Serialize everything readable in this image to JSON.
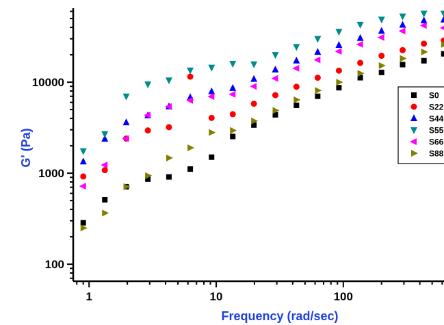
{
  "chart_data": {
    "type": "scatter",
    "title": "",
    "xlabel": "Frequency (rad/sec)",
    "ylabel": "G' (Pa)",
    "xscale": "log",
    "yscale": "log",
    "xlim": [
      0.75,
      620
    ],
    "ylim": [
      65,
      65000
    ],
    "x_ticks": [
      1,
      10,
      100
    ],
    "x_tick_labels": [
      "1",
      "10",
      "100"
    ],
    "y_ticks": [
      100,
      1000,
      10000
    ],
    "y_tick_labels": [
      "100",
      "1000",
      "10000"
    ],
    "grid": false,
    "legend_position": "right",
    "x": [
      0.9,
      1.33,
      1.96,
      2.9,
      4.25,
      6.25,
      9.2,
      13.5,
      19.8,
      29.2,
      42.8,
      62.9,
      92.4,
      136,
      200,
      293,
      431,
      618
    ],
    "series": [
      {
        "name": "S0",
        "marker": "square",
        "color": "#000000",
        "values": [
          285,
          510,
          710,
          860,
          910,
          1110,
          1500,
          2530,
          3380,
          4380,
          5570,
          7000,
          8700,
          11200,
          12800,
          15600,
          17200,
          20500
        ]
      },
      {
        "name": "S22",
        "marker": "circle",
        "color": "#ff0000",
        "values": [
          920,
          1080,
          2400,
          2950,
          3200,
          11500,
          4050,
          4450,
          5800,
          7200,
          8900,
          11200,
          13400,
          16300,
          19500,
          22500,
          26500,
          28700
        ]
      },
      {
        "name": "S44",
        "marker": "triangle-up",
        "color": "#0000ff",
        "values": [
          1340,
          2380,
          3600,
          4300,
          5400,
          6800,
          7900,
          8600,
          10800,
          13700,
          17200,
          21400,
          25500,
          30500,
          36500,
          42500,
          47500,
          48500
        ]
      },
      {
        "name": "S55",
        "marker": "triangle-down",
        "color": "#008b8b",
        "values": [
          1750,
          2700,
          7000,
          9500,
          10500,
          13500,
          14500,
          16000,
          15800,
          20000,
          24500,
          30000,
          36000,
          43000,
          49000,
          53000,
          57000,
          57000
        ]
      },
      {
        "name": "S66",
        "marker": "triangle-left",
        "color": "#ff00ff",
        "values": [
          720,
          1230,
          2400,
          4350,
          5400,
          6300,
          6950,
          7350,
          9000,
          11000,
          14200,
          17600,
          21800,
          26000,
          31000,
          36500,
          42000,
          39500
        ]
      },
      {
        "name": "S88",
        "marker": "triangle-right",
        "color": "#808000",
        "values": [
          250,
          365,
          710,
          940,
          1470,
          1900,
          2800,
          2950,
          3750,
          4900,
          6400,
          8100,
          10000,
          12500,
          15200,
          18200,
          21500,
          26000
        ]
      }
    ]
  }
}
